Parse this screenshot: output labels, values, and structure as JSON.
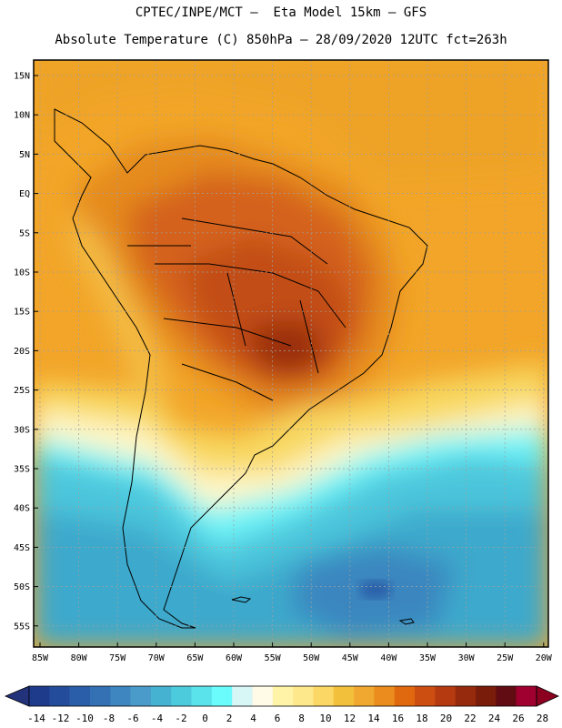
{
  "title_line1": "CPTEC/INPE/MCT –  Eta Model 15km – GFS",
  "title_line2": "Absolute Temperature (C) 850hPa – 28/09/2020 12UTC fct=263h",
  "lat_labels": [
    "15N",
    "10N",
    "5N",
    "EQ",
    "5S",
    "10S",
    "15S",
    "20S",
    "25S",
    "30S",
    "35S",
    "40S",
    "45S",
    "50S",
    "55S"
  ],
  "lon_labels": [
    "85W",
    "80W",
    "75W",
    "70W",
    "65W",
    "60W",
    "55W",
    "50W",
    "45W",
    "40W",
    "35W",
    "30W",
    "25W",
    "20W"
  ],
  "colorbar": {
    "tick_labels": [
      "-14",
      "-12",
      "-10",
      "-8",
      "-6",
      "-4",
      "-2",
      "0",
      "2",
      "4",
      "6",
      "8",
      "10",
      "12",
      "14",
      "16",
      "18",
      "20",
      "22",
      "24",
      "26",
      "28"
    ],
    "colors": [
      "#1e3a8a",
      "#234c9a",
      "#2a5ea8",
      "#3371b4",
      "#3d86bf",
      "#4a9bc9",
      "#45b2d2",
      "#4ccbdd",
      "#5be3ec",
      "#6afcfc",
      "#d7f6f6",
      "#fffbe6",
      "#fef3a6",
      "#fee88c",
      "#fbd765",
      "#f3c03c",
      "#f1a830",
      "#ea8c1e",
      "#e0680e",
      "#cc4e10",
      "#b53a10",
      "#962a0c",
      "#7a1c0a",
      "#600c12",
      "#a00030"
    ],
    "under_color": "#22337c",
    "over_color": "#8c0020"
  }
}
